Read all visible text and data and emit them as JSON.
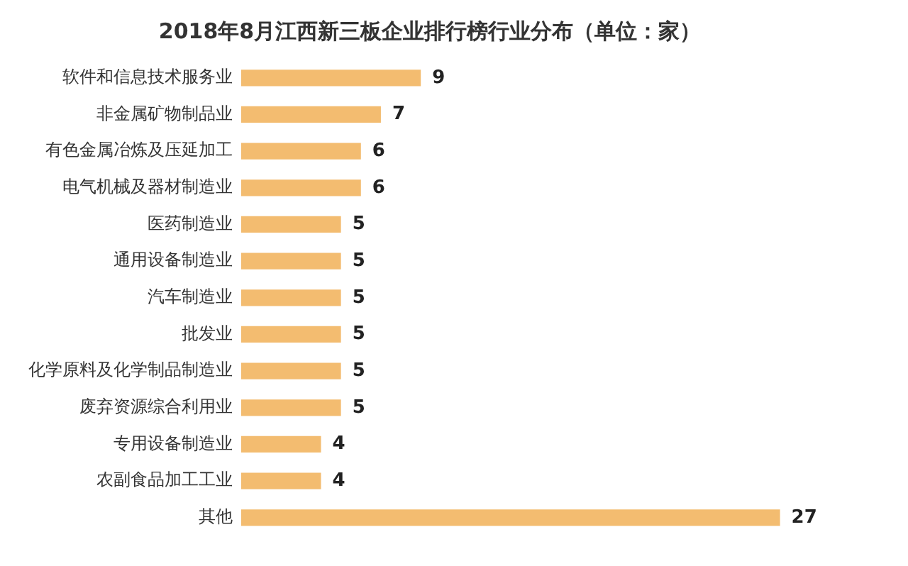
{
  "chart_data": {
    "type": "bar",
    "orientation": "horizontal",
    "title": "2018年8月江西新三板企业排行榜行业分布（单位：家）",
    "categories": [
      "软件和信息技术服务业",
      "非金属矿物制品业",
      "有色金属冶炼及压延加工",
      "电气机械及器材制造业",
      "医药制造业",
      "通用设备制造业",
      "汽车制造业",
      "批发业",
      "化学原料及化学制品制造业",
      "废弃资源综合利用业",
      "专用设备制造业",
      "农副食品加工工业",
      "其他"
    ],
    "values": [
      9,
      7,
      6,
      6,
      5,
      5,
      5,
      5,
      5,
      5,
      4,
      4,
      27
    ],
    "color": "#f3bc70",
    "data_labels": true,
    "grid": false,
    "legend": false
  }
}
